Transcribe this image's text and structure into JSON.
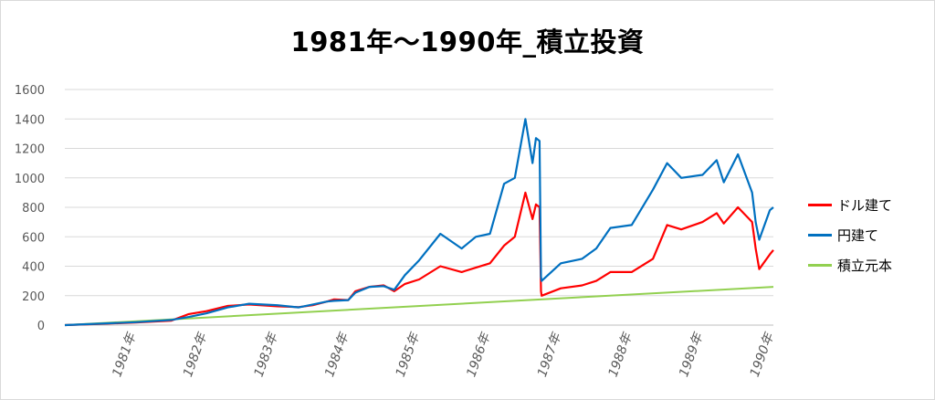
{
  "chart_data": {
    "type": "line",
    "title": "1981年～1990年_積立投資",
    "xlabel": "",
    "ylabel": "",
    "ylim": [
      0,
      1600
    ],
    "y_ticks": [
      0,
      200,
      400,
      600,
      800,
      1000,
      1200,
      1400,
      1600
    ],
    "x_ticks": [
      "1981年",
      "1982年",
      "1983年",
      "1984年",
      "1985年",
      "1986年",
      "1987年",
      "1988年",
      "1989年",
      "1990年"
    ],
    "grid": true,
    "legend_position": "right",
    "x_range": [
      1980.0,
      1990.0
    ],
    "series": [
      {
        "name": "ドル建て",
        "color": "#ff0000",
        "x": [
          1980.0,
          1980.5,
          1981.0,
          1981.5,
          1981.75,
          1982.0,
          1982.3,
          1982.6,
          1983.0,
          1983.3,
          1983.5,
          1983.7,
          1983.8,
          1984.0,
          1984.1,
          1984.3,
          1984.5,
          1984.65,
          1984.8,
          1985.0,
          1985.3,
          1985.6,
          1985.8,
          1986.0,
          1986.2,
          1986.35,
          1986.5,
          1986.6,
          1986.65,
          1986.7,
          1986.72,
          1986.73,
          1987.0,
          1987.3,
          1987.5,
          1987.7,
          1988.0,
          1988.3,
          1988.5,
          1988.7,
          1989.0,
          1989.2,
          1989.3,
          1989.5,
          1989.7,
          1989.75,
          1989.8,
          1989.95,
          1990.0
        ],
        "y": [
          0,
          8,
          18,
          30,
          75,
          95,
          130,
          140,
          128,
          122,
          135,
          160,
          175,
          170,
          230,
          260,
          270,
          230,
          280,
          310,
          400,
          360,
          390,
          420,
          540,
          600,
          900,
          720,
          820,
          800,
          230,
          200,
          250,
          270,
          300,
          360,
          360,
          450,
          680,
          650,
          700,
          760,
          690,
          800,
          700,
          520,
          380,
          480,
          510
        ]
      },
      {
        "name": "円建て",
        "color": "#0070c0",
        "x": [
          1980.0,
          1980.5,
          1981.0,
          1981.5,
          1981.75,
          1982.0,
          1982.3,
          1982.6,
          1983.0,
          1983.3,
          1983.5,
          1983.7,
          1983.8,
          1984.0,
          1984.1,
          1984.3,
          1984.5,
          1984.65,
          1984.8,
          1985.0,
          1985.3,
          1985.6,
          1985.8,
          1986.0,
          1986.2,
          1986.35,
          1986.5,
          1986.6,
          1986.65,
          1986.7,
          1986.72,
          1986.73,
          1987.0,
          1987.3,
          1987.5,
          1987.7,
          1988.0,
          1988.3,
          1988.5,
          1988.7,
          1989.0,
          1989.2,
          1989.3,
          1989.5,
          1989.7,
          1989.75,
          1989.8,
          1989.95,
          1990.0
        ],
        "y": [
          0,
          10,
          20,
          35,
          55,
          80,
          120,
          145,
          135,
          120,
          140,
          160,
          165,
          170,
          220,
          260,
          265,
          240,
          340,
          440,
          620,
          520,
          600,
          620,
          960,
          1000,
          1400,
          1100,
          1270,
          1250,
          330,
          300,
          420,
          450,
          520,
          660,
          680,
          920,
          1100,
          1000,
          1020,
          1120,
          970,
          1160,
          900,
          700,
          580,
          780,
          800
        ]
      },
      {
        "name": "積立元本",
        "color": "#92d050",
        "x": [
          1980.0,
          1990.0
        ],
        "y": [
          0,
          260
        ]
      }
    ]
  }
}
